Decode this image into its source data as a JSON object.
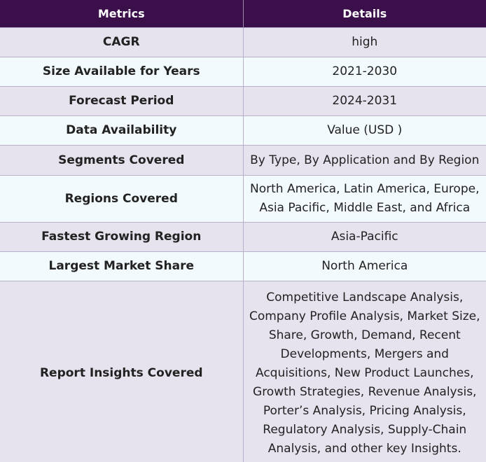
{
  "table": {
    "headers": {
      "metrics": "Metrics",
      "details": "Details"
    },
    "rows": [
      {
        "metric": "CAGR",
        "detail": "high"
      },
      {
        "metric": "Size Available for Years",
        "detail": "2021-2030"
      },
      {
        "metric": "Forecast Period",
        "detail": "2024-2031"
      },
      {
        "metric": "Data Availability",
        "detail": "Value (USD )"
      },
      {
        "metric": "Segments Covered",
        "detail": "By Type, By Application and By Region"
      },
      {
        "metric": "Regions Covered",
        "detail": "North America, Latin America, Europe, Asia Pacific, Middle East, and Africa"
      },
      {
        "metric": "Fastest Growing Region",
        "detail": "Asia-Pacific"
      },
      {
        "metric": "Largest Market Share",
        "detail": "North America"
      },
      {
        "metric": "Report Insights Covered",
        "detail": "Competitive Landscape Analysis, Company Profile Analysis, Market Size, Share, Growth, Demand, Recent Developments, Mergers and Acquisitions, New Product Launches, Growth Strategies, Revenue Analysis, Porter’s Analysis, Pricing Analysis, Regulatory Analysis, Supply-Chain Analysis, and other key Insights."
      }
    ]
  },
  "colors": {
    "header_bg": "#3a0f4a",
    "row_odd_bg": "#e7e3ee",
    "row_even_bg": "#f3fafd",
    "border": "#b8b0c8"
  }
}
